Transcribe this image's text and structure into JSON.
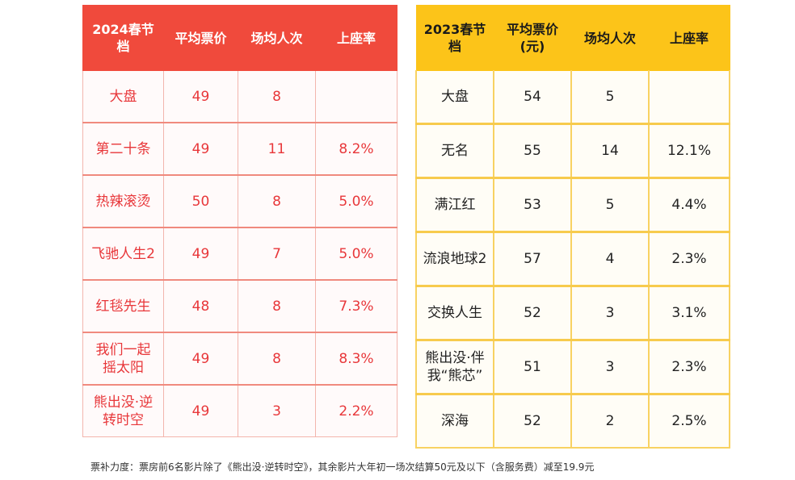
{
  "table_2024": {
    "headers": [
      "2024春节档",
      "平均票价",
      "场均人次",
      "上座率"
    ],
    "rows": [
      [
        "大盘",
        "49",
        "8",
        ""
      ],
      [
        "第二十条",
        "49",
        "11",
        "8.2%"
      ],
      [
        "热辣滚烫",
        "50",
        "8",
        "5.0%"
      ],
      [
        "飞驰人生2",
        "49",
        "7",
        "5.0%"
      ],
      [
        "红毯先生",
        "48",
        "8",
        "7.3%"
      ],
      [
        "我们一起摇太阳",
        "49",
        "8",
        "8.3%"
      ],
      [
        "熊出没·逆转时空",
        "49",
        "3",
        "2.2%"
      ]
    ]
  },
  "table_2023": {
    "headers": [
      "2023春节档",
      "平均票价(元)",
      "场均人次",
      "上座率"
    ],
    "rows": [
      [
        "大盘",
        "54",
        "5",
        ""
      ],
      [
        "无名",
        "55",
        "14",
        "12.1%"
      ],
      [
        "满江红",
        "53",
        "5",
        "4.4%"
      ],
      [
        "流浪地球2",
        "57",
        "4",
        "2.3%"
      ],
      [
        "交换人生",
        "52",
        "3",
        "3.1%"
      ],
      [
        "熊出没·伴我“熊芯”",
        "51",
        "3",
        "2.3%"
      ],
      [
        "深海",
        "52",
        "2",
        "2.5%"
      ]
    ]
  },
  "footnote": "票补力度：票房前6名影片除了《熊出没·逆转时空》，其余影片大年初一场次结算50元及以下（含服务费）减至19.9元"
}
